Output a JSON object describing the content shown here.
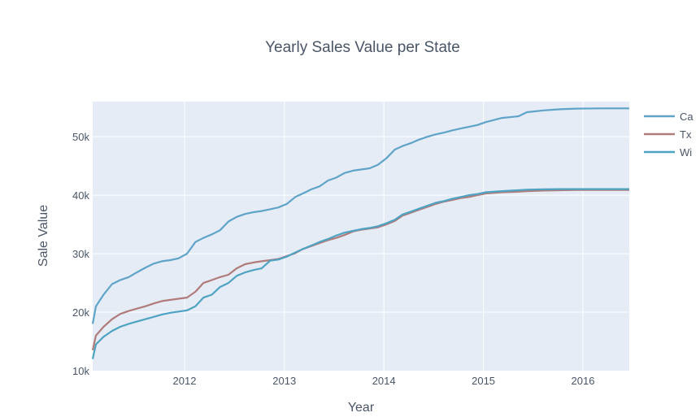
{
  "chart_data": {
    "type": "line",
    "title": "Yearly Sales Value per State",
    "xlabel": "Year",
    "ylabel": "Sale Value",
    "xlim": [
      "2011-01-29",
      "2016-06-19"
    ],
    "ylim": [
      10000,
      56000
    ],
    "x_ticks": [
      {
        "value": "2012-01-01",
        "label": "2012"
      },
      {
        "value": "2013-01-01",
        "label": "2013"
      },
      {
        "value": "2014-01-01",
        "label": "2014"
      },
      {
        "value": "2015-01-01",
        "label": "2015"
      },
      {
        "value": "2016-01-01",
        "label": "2016"
      }
    ],
    "y_ticks": [
      {
        "value": 10000,
        "label": "10k"
      },
      {
        "value": 20000,
        "label": "20k"
      },
      {
        "value": 30000,
        "label": "30k"
      },
      {
        "value": 40000,
        "label": "40k"
      },
      {
        "value": 50000,
        "label": "50k"
      }
    ],
    "grid": true,
    "legend_position": "top-right",
    "colors": {
      "plot_bg": "#e5ecf6",
      "grid": "#ffffff",
      "text": "#4a5567"
    },
    "series": [
      {
        "name": "Ca",
        "color": "#5fa4c8",
        "x": [
          "2011-01-29",
          "2011-02-10",
          "2011-03-10",
          "2011-04-10",
          "2011-05-10",
          "2011-06-10",
          "2011-07-10",
          "2011-08-10",
          "2011-09-10",
          "2011-10-10",
          "2011-11-10",
          "2011-12-10",
          "2012-01-10",
          "2012-02-10",
          "2012-03-10",
          "2012-04-10",
          "2012-05-10",
          "2012-06-10",
          "2012-07-10",
          "2012-08-10",
          "2012-09-10",
          "2012-10-10",
          "2012-11-10",
          "2012-12-10",
          "2013-01-10",
          "2013-02-10",
          "2013-03-10",
          "2013-04-10",
          "2013-05-10",
          "2013-06-10",
          "2013-07-10",
          "2013-08-10",
          "2013-09-10",
          "2013-10-10",
          "2013-11-10",
          "2013-12-10",
          "2014-01-10",
          "2014-02-10",
          "2014-03-10",
          "2014-04-10",
          "2014-05-10",
          "2014-06-10",
          "2014-07-10",
          "2014-08-10",
          "2014-09-10",
          "2014-10-10",
          "2014-11-10",
          "2014-12-10",
          "2015-01-10",
          "2015-03-10",
          "2015-05-10",
          "2015-06-10",
          "2015-08-10",
          "2015-10-10",
          "2015-12-10",
          "2016-03-10",
          "2016-06-19"
        ],
        "values": [
          18000,
          21000,
          23000,
          24800,
          25500,
          26000,
          26800,
          27600,
          28300,
          28700,
          28900,
          29200,
          30000,
          32000,
          32700,
          33300,
          34000,
          35500,
          36300,
          36800,
          37100,
          37300,
          37600,
          37900,
          38500,
          39700,
          40300,
          41000,
          41500,
          42500,
          43000,
          43800,
          44200,
          44400,
          44600,
          45200,
          46300,
          47800,
          48400,
          48900,
          49500,
          50000,
          50400,
          50700,
          51100,
          51400,
          51700,
          52000,
          52500,
          53200,
          53500,
          54200,
          54500,
          54700,
          54800,
          54850,
          54850
        ]
      },
      {
        "name": "Tx",
        "color": "#b07b7b",
        "x": [
          "2011-01-29",
          "2011-02-10",
          "2011-03-10",
          "2011-04-10",
          "2011-05-10",
          "2011-06-10",
          "2011-07-10",
          "2011-08-10",
          "2011-09-10",
          "2011-10-10",
          "2011-11-10",
          "2011-12-10",
          "2012-01-10",
          "2012-02-10",
          "2012-03-10",
          "2012-04-10",
          "2012-05-10",
          "2012-06-10",
          "2012-07-10",
          "2012-08-10",
          "2012-09-10",
          "2012-10-10",
          "2012-11-10",
          "2012-12-10",
          "2013-01-10",
          "2013-02-10",
          "2013-03-10",
          "2013-04-10",
          "2013-05-10",
          "2013-06-10",
          "2013-07-10",
          "2013-08-10",
          "2013-09-10",
          "2013-10-10",
          "2013-11-10",
          "2013-12-10",
          "2014-01-10",
          "2014-02-10",
          "2014-03-10",
          "2014-04-10",
          "2014-05-10",
          "2014-06-10",
          "2014-07-10",
          "2014-08-10",
          "2014-09-10",
          "2014-10-10",
          "2014-11-10",
          "2014-12-10",
          "2015-01-10",
          "2015-03-10",
          "2015-05-10",
          "2015-06-10",
          "2015-08-10",
          "2015-10-10",
          "2015-12-10",
          "2016-03-10",
          "2016-06-19"
        ],
        "values": [
          13500,
          16000,
          17500,
          18800,
          19700,
          20200,
          20600,
          21000,
          21500,
          21900,
          22100,
          22300,
          22500,
          23500,
          25000,
          25500,
          26000,
          26400,
          27500,
          28200,
          28500,
          28700,
          28900,
          29100,
          29600,
          30100,
          30800,
          31300,
          31800,
          32300,
          32700,
          33200,
          33800,
          34100,
          34300,
          34500,
          35000,
          35600,
          36500,
          37000,
          37500,
          38000,
          38500,
          38900,
          39200,
          39500,
          39700,
          40000,
          40300,
          40500,
          40600,
          40700,
          40800,
          40850,
          40900,
          40900,
          40900
        ]
      },
      {
        "name": "Wi",
        "color": "#4ea3c2",
        "x": [
          "2011-01-29",
          "2011-02-10",
          "2011-03-10",
          "2011-04-10",
          "2011-05-10",
          "2011-06-10",
          "2011-07-10",
          "2011-08-10",
          "2011-09-10",
          "2011-10-10",
          "2011-11-10",
          "2011-12-10",
          "2012-01-10",
          "2012-02-10",
          "2012-03-10",
          "2012-04-10",
          "2012-05-10",
          "2012-06-10",
          "2012-07-10",
          "2012-08-10",
          "2012-09-10",
          "2012-10-10",
          "2012-11-10",
          "2012-12-10",
          "2013-01-10",
          "2013-02-10",
          "2013-03-10",
          "2013-04-10",
          "2013-05-10",
          "2013-06-10",
          "2013-07-10",
          "2013-08-10",
          "2013-09-10",
          "2013-10-10",
          "2013-11-10",
          "2013-12-10",
          "2014-01-10",
          "2014-02-10",
          "2014-03-10",
          "2014-04-10",
          "2014-05-10",
          "2014-06-10",
          "2014-07-10",
          "2014-08-10",
          "2014-09-10",
          "2014-10-10",
          "2014-11-10",
          "2014-12-10",
          "2015-01-10",
          "2015-03-10",
          "2015-05-10",
          "2015-06-10",
          "2015-08-10",
          "2015-10-10",
          "2015-12-10",
          "2016-03-10",
          "2016-06-19"
        ],
        "values": [
          12000,
          14500,
          15800,
          16800,
          17500,
          18000,
          18400,
          18800,
          19200,
          19600,
          19900,
          20100,
          20300,
          21000,
          22500,
          23000,
          24300,
          25000,
          26200,
          26800,
          27200,
          27500,
          28800,
          29000,
          29500,
          30200,
          30800,
          31400,
          32000,
          32500,
          33100,
          33600,
          33900,
          34200,
          34400,
          34700,
          35200,
          35800,
          36700,
          37200,
          37700,
          38200,
          38700,
          39000,
          39400,
          39700,
          40000,
          40200,
          40500,
          40700,
          40850,
          40950,
          41000,
          41050,
          41050,
          41050,
          41050
        ]
      }
    ]
  }
}
